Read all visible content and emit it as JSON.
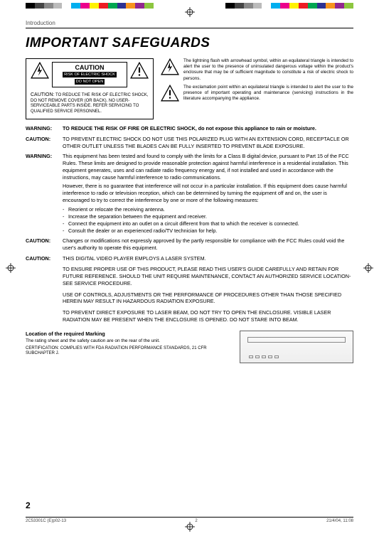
{
  "colorbar": [
    "#000000",
    "#444444",
    "#888888",
    "#bbbbbb",
    "#ffffff",
    "#00aeef",
    "#ec008c",
    "#fff200",
    "#ed1c24",
    "#00a651",
    "#2e3192",
    "#f7941d",
    "#92278f",
    "#8dc63f"
  ],
  "section_label": "Introduction",
  "title": "IMPORTANT SAFEGUARDS",
  "caution_box": {
    "head": "CAUTION",
    "sub1": "RISK OF ELECTRIC SHOCK",
    "sub2": "DO NOT OPEN",
    "lead": "CAUTION:",
    "body": "TO REDUCE THE RISK OF ELECTRIC SHOCK, DO NOT REMOVE COVER (OR BACK). NO USER-SERVICEABLE PARTS INSIDE. REFER SERVICING TO QUALIFIED SERVICE PERSONNEL."
  },
  "lightning_text": "The lightning flash with arrowhead symbol, within an equilateral triangle is intended to alert the user to the presence of uninsulated dangerous voltage within the product's enclosure that may be of sufficient magnitude to constitute a risk of electric shock to persons.",
  "exclaim_text": "The exclamation point within an equilateral triangle is intended to alert the user to the presence of important operating and maintenance (servicing) instructions in the literature accompanying the appliance.",
  "warnings": [
    {
      "label": "WARNING:",
      "body_bold": "TO REDUCE THE RISK OF FIRE OR ELECTRIC SHOCK, do not expose this appliance to rain or moisture."
    },
    {
      "label": "CAUTION:",
      "body": "TO PREVENT ELECTRIC SHOCK DO NOT USE THIS POLARIZED PLUG WITH AN EXTENSION CORD, RECEPTACLE OR OTHER OUTLET UNLESS THE BLADES CAN BE FULLY INSERTED TO PREVENT BLADE EXPOSURE."
    },
    {
      "label": "WARNING:",
      "body": "This equipment has been tested and found to comply with the limits for a Class B digital device, pursuant to Part 15 of the FCC Rules. These limits are designed to provide reasonable protection against harmful interference in a residential installation. This equipment generates, uses and can radiate radio frequency energy and, if not installed and used in accordance with the instructions, may cause harmful interference to radio communications.",
      "body2": "However, there is no guarantee that interference will not occur in a particular installation. If this equipment does cause harmful interference to radio or television reception, which can be determined by turning the equipment off and on, the user is encouraged to try to correct the interference by one or more of the following measures:",
      "bullets": [
        "Reorient or relocate the receiving antenna.",
        "Increase the separation between the equipment and receiver.",
        "Connect the equipment into an outlet on a circuit different from that to which the receiver is connected.",
        "Consult the dealer or an experienced radio/TV technician for help."
      ]
    },
    {
      "label": "CAUTION:",
      "body": "Changes or modifications not expressly approved by the partly responsible for compliance with the FCC Rules could void the user's authority to operate this equipment."
    },
    {
      "label": "CAUTION:",
      "body": "THIS DIGITAL VIDEO PLAYER EMPLOYS A LASER SYSTEM.",
      "paras": [
        "TO ENSURE PROPER USE OF THIS PRODUCT, PLEASE READ THIS USER'S GUIDE CAREFULLY AND RETAIN FOR FUTURE REFERENCE.  SHOULD THE UNIT REQUIRE MAINTENANCE, CONTACT AN AUTHORIZED SERVICE LOCATION-SEE SERVICE PROCEDURE.",
        "USE OF CONTROLS, ADJUSTMENTS OR THE PERFORMANCE OF PROCEDURES OTHER THAN THOSE SPECIFIED HEREIN MAY RESULT IN HAZARDOUS RADIATION EXPOSURE.",
        "TO PREVENT DIRECT EXPOSURE TO LASER BEAM, DO NOT TRY TO OPEN THE ENCLOSURE.  VISIBLE LASER RADIATION MAY BE PRESENT WHEN THE ENCLOSURE IS OPENED. DO NOT STARE INTO BEAM."
      ]
    }
  ],
  "marking": {
    "head": "Location of the required Marking",
    "sub": "The rating sheet and the safety caution are on the rear of the unit.",
    "cert": "CERTIFICATION: COMPLIES WITH FDA RADIATION PERFORMANCE STANDARDS, 21 CFR SUBCHAPTER J."
  },
  "page_number": "2",
  "footer": {
    "left": "2C53301C (E)p02-13",
    "mid": "2",
    "right": "21/4/04, 11:08"
  }
}
